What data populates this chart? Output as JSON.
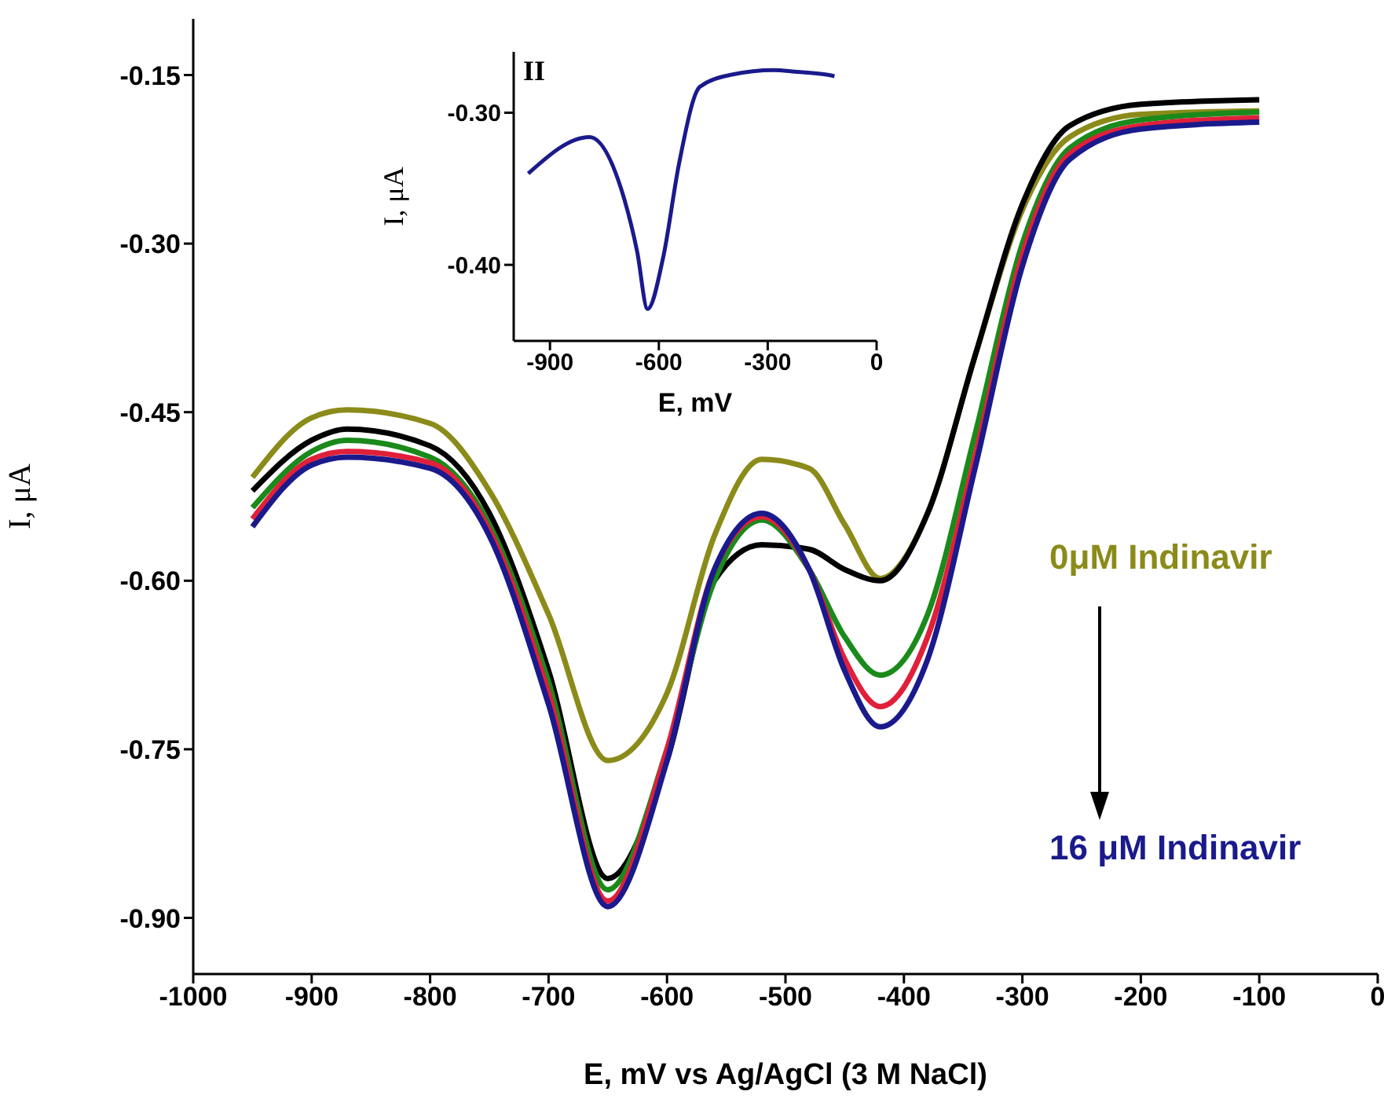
{
  "chart_data": [
    {
      "type": "line",
      "xlabel": "E, mV vs Ag/AgCl (3 M NaCl)",
      "ylabel": "I, μA",
      "x": [
        -950,
        -900,
        -870,
        -800,
        -750,
        -700,
        -650,
        -600,
        -560,
        -520,
        -480,
        -450,
        -420,
        -380,
        -340,
        -300,
        -260,
        -200,
        -100
      ],
      "series": [
        {
          "color": "#8b8b1a",
          "values": [
            -0.508,
            -0.455,
            -0.448,
            -0.46,
            -0.52,
            -0.63,
            -0.76,
            -0.7,
            -0.56,
            -0.492,
            -0.5,
            -0.55,
            -0.598,
            -0.54,
            -0.4,
            -0.27,
            -0.205,
            -0.185,
            -0.182
          ]
        },
        {
          "color": "#000000",
          "values": [
            -0.52,
            -0.475,
            -0.465,
            -0.48,
            -0.54,
            -0.68,
            -0.865,
            -0.76,
            -0.6,
            -0.568,
            -0.572,
            -0.59,
            -0.6,
            -0.54,
            -0.4,
            -0.265,
            -0.195,
            -0.176,
            -0.172
          ]
        },
        {
          "color": "#1a8a1a",
          "values": [
            -0.535,
            -0.485,
            -0.475,
            -0.49,
            -0.55,
            -0.69,
            -0.875,
            -0.75,
            -0.6,
            -0.546,
            -0.59,
            -0.65,
            -0.684,
            -0.63,
            -0.47,
            -0.3,
            -0.215,
            -0.19,
            -0.183
          ]
        },
        {
          "color": "#e0203a",
          "values": [
            -0.545,
            -0.492,
            -0.485,
            -0.495,
            -0.555,
            -0.7,
            -0.885,
            -0.75,
            -0.59,
            -0.543,
            -0.59,
            -0.67,
            -0.712,
            -0.65,
            -0.49,
            -0.31,
            -0.22,
            -0.195,
            -0.188
          ]
        },
        {
          "color": "#1a1a8c",
          "values": [
            -0.552,
            -0.497,
            -0.49,
            -0.5,
            -0.56,
            -0.71,
            -0.89,
            -0.76,
            -0.59,
            -0.54,
            -0.59,
            -0.68,
            -0.73,
            -0.67,
            -0.5,
            -0.32,
            -0.225,
            -0.198,
            -0.192
          ]
        }
      ],
      "xlim": [
        -1000,
        0
      ],
      "xticks": [
        -1000,
        -900,
        -800,
        -700,
        -600,
        -500,
        -400,
        -300,
        -200,
        -100,
        0
      ],
      "ylim": [
        -0.95,
        -0.1
      ],
      "yticks": [
        -0.15,
        {
          "value": -0.3,
          "label": "-0.30"
        },
        -0.45,
        {
          "value": -0.6,
          "label": "-0.60"
        },
        -0.75,
        {
          "value": -0.9,
          "label": "-0.90"
        }
      ],
      "annotations": [
        "0μM Indinavir",
        "16 μM Indinavir"
      ]
    },
    {
      "type": "line",
      "title": "II",
      "xlabel": "E, mV",
      "ylabel": "I, μA",
      "x": [
        -960,
        -791,
        -704,
        -660,
        -631,
        -588,
        -544,
        -487,
        -399,
        -283,
        -225,
        -138,
        -116
      ],
      "series": [
        {
          "color": "#1a1a8c",
          "values": [
            -0.34,
            -0.316,
            -0.35,
            -0.391,
            -0.429,
            -0.395,
            -0.333,
            -0.283,
            -0.275,
            -0.272,
            -0.273,
            -0.275,
            -0.276
          ]
        }
      ],
      "xlim": [
        -1000,
        0
      ],
      "xticks": [
        -900,
        -600,
        -300,
        0
      ],
      "ylim": [
        -0.45,
        -0.26
      ],
      "yticks": [
        {
          "value": -0.3,
          "label": "-0.30"
        },
        {
          "value": -0.4,
          "label": "-0.40"
        }
      ]
    }
  ]
}
